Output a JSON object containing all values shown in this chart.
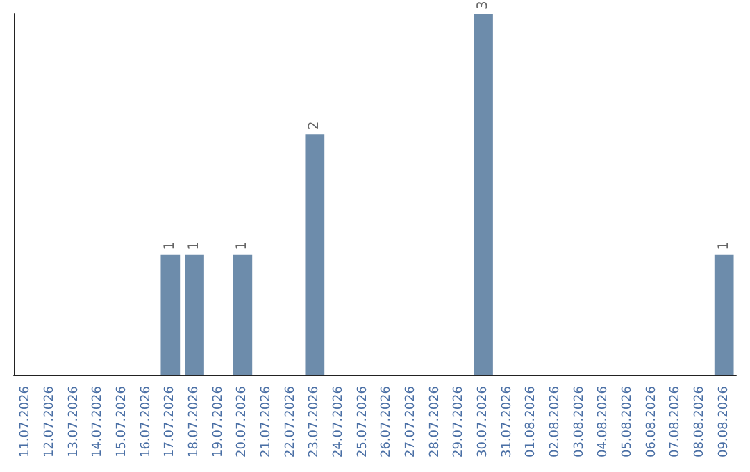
{
  "chart_data": {
    "type": "bar",
    "categories": [
      "11.07.2026",
      "12.07.2026",
      "13.07.2026",
      "14.07.2026",
      "15.07.2026",
      "16.07.2026",
      "17.07.2026",
      "18.07.2026",
      "19.07.2026",
      "20.07.2026",
      "21.07.2026",
      "22.07.2026",
      "23.07.2026",
      "24.07.2026",
      "25.07.2026",
      "26.07.2026",
      "27.07.2026",
      "28.07.2026",
      "29.07.2026",
      "30.07.2026",
      "31.07.2026",
      "01.08.2026",
      "02.08.2026",
      "03.08.2026",
      "04.08.2026",
      "05.08.2026",
      "06.08.2026",
      "07.08.2026",
      "08.08.2026",
      "09.08.2026"
    ],
    "values": [
      0,
      0,
      0,
      0,
      0,
      0,
      1,
      1,
      0,
      1,
      0,
      0,
      2,
      0,
      0,
      0,
      0,
      0,
      0,
      3,
      0,
      0,
      0,
      0,
      0,
      0,
      0,
      0,
      0,
      1
    ],
    "value_labels": [
      null,
      null,
      null,
      null,
      null,
      null,
      "1",
      "1",
      null,
      "1",
      null,
      null,
      "2",
      null,
      null,
      null,
      null,
      null,
      null,
      "3",
      null,
      null,
      null,
      null,
      null,
      null,
      null,
      null,
      null,
      "1"
    ],
    "color": "#6d8cab",
    "tick_labels": "x",
    "grid": false
  }
}
